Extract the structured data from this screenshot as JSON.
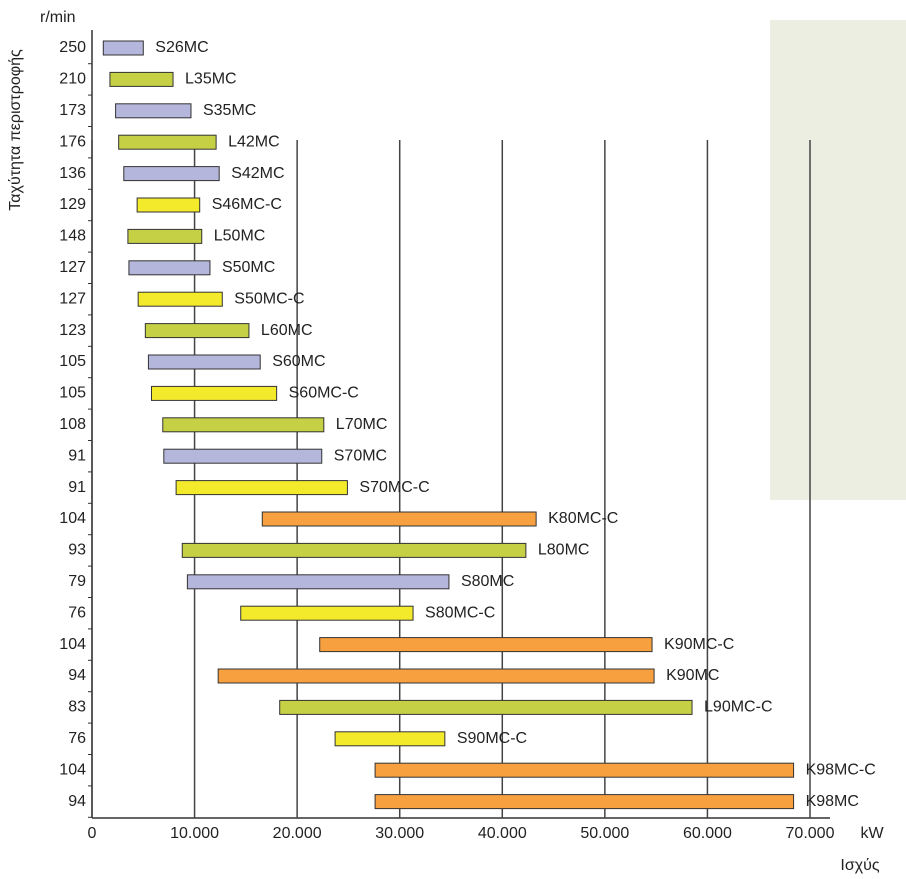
{
  "chart_data": {
    "type": "range-bar",
    "y_label": "Ταχύτητα περιστροφής",
    "y_unit": "r/min",
    "x_unit": "kW",
    "x_label": "Ισχύς",
    "categories": [
      "S26MC",
      "L35MC",
      "S35MC",
      "L42MC",
      "S42MC",
      "S46MC-C",
      "L50MC",
      "S50MC",
      "S50MC-C",
      "L60MC",
      "S60MC",
      "S60MC-C",
      "L70MC",
      "S70MC",
      "S70MC-C",
      "K80MC-C",
      "L80MC",
      "S80MC",
      "S80MC-C",
      "K90MC-C",
      "K90MC",
      "L90MC-C",
      "S90MC-C",
      "K98MC-C",
      "K98MC"
    ],
    "speeds": [
      250,
      210,
      173,
      176,
      136,
      129,
      148,
      127,
      127,
      123,
      105,
      105,
      108,
      91,
      91,
      104,
      93,
      79,
      76,
      104,
      94,
      83,
      76,
      104,
      94
    ],
    "start": [
      1100,
      1750,
      2300,
      2600,
      3100,
      4400,
      3500,
      3600,
      4500,
      5200,
      5500,
      5800,
      6900,
      7000,
      8200,
      16600,
      8800,
      9300,
      14500,
      22200,
      12300,
      18300,
      23700,
      27600,
      27600
    ],
    "end": [
      5000,
      7900,
      9650,
      12100,
      12400,
      10500,
      10700,
      11500,
      12700,
      15300,
      16400,
      18000,
      22600,
      22400,
      24900,
      43300,
      42300,
      34800,
      31300,
      54600,
      54800,
      58500,
      34400,
      68400,
      68400
    ],
    "colors": [
      "#b4b6dc",
      "#c6d044",
      "#b4b6dc",
      "#c6d044",
      "#b4b6dc",
      "#f4ea2c",
      "#c6d044",
      "#b4b6dc",
      "#f4ea2c",
      "#c6d044",
      "#b4b6dc",
      "#f4ea2c",
      "#c6d044",
      "#b4b6dc",
      "#f4ea2c",
      "#f6a040",
      "#c6d044",
      "#b4b6dc",
      "#f4ea2c",
      "#f6a040",
      "#f6a040",
      "#c6d044",
      "#f4ea2c",
      "#f6a040",
      "#f6a040"
    ],
    "xlim": [
      0,
      70000
    ],
    "xticks": [
      0,
      {
        "value": 10000,
        "label": "10.000"
      },
      {
        "value": 20000,
        "label": "20.000"
      },
      {
        "value": 30000,
        "label": "30.000"
      },
      {
        "value": 40000,
        "label": "40.000"
      },
      {
        "value": 50000,
        "label": "50.000"
      },
      {
        "value": 60000,
        "label": "60.000"
      },
      {
        "value": 70000,
        "label": "70.000"
      }
    ],
    "grid": true
  }
}
